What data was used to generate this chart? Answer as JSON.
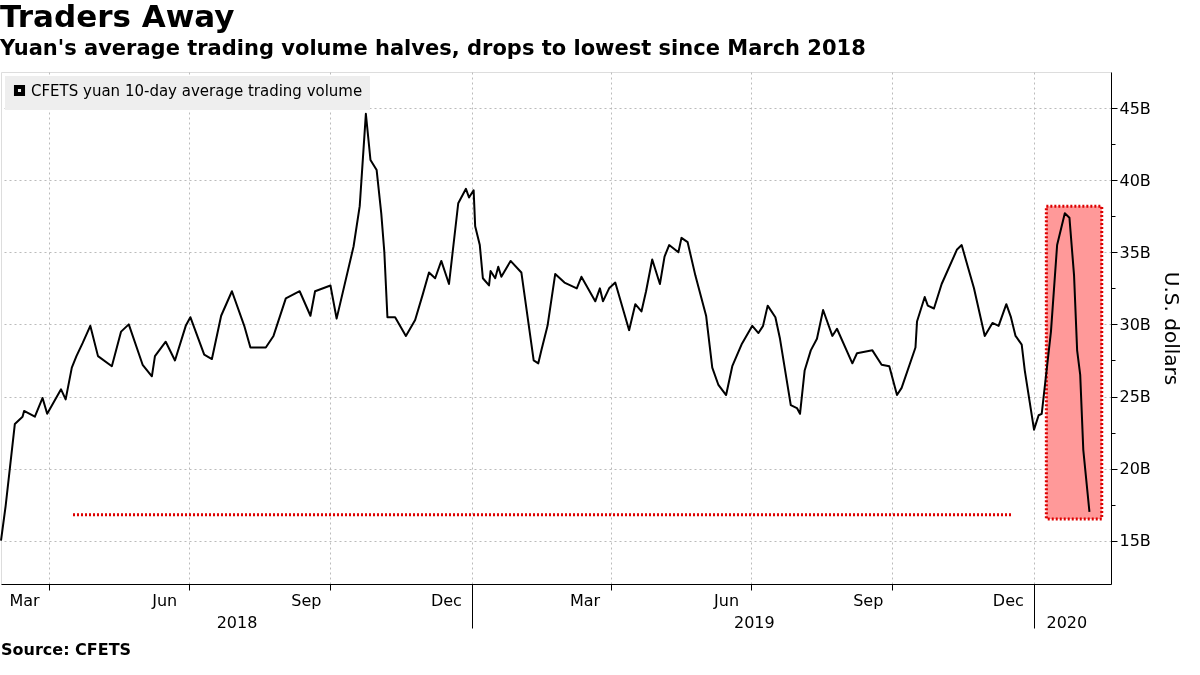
{
  "chart_data": {
    "type": "line",
    "title": "Traders Away",
    "subtitle": "Yuan's average trading volume halves, drops to lowest since March 2018",
    "ylabel": "U.S. dollars",
    "annotations": [
      "Source: CFETS"
    ],
    "series": [
      {
        "name": "CFETS yuan 10-day average trading volume",
        "color": "#000000",
        "x": [
          "2018-03-01",
          "2018-03-04",
          "2018-03-10",
          "2018-03-15",
          "2018-03-16",
          "2018-03-23",
          "2018-03-28",
          "2018-03-31",
          "2018-04-09",
          "2018-04-12",
          "2018-04-16",
          "2018-04-19",
          "2018-04-23",
          "2018-04-28",
          "2018-05-03",
          "2018-05-12",
          "2018-05-18",
          "2018-05-23",
          "2018-06-01",
          "2018-06-07",
          "2018-06-09",
          "2018-06-16",
          "2018-06-22",
          "2018-06-29",
          "2018-07-02",
          "2018-07-11",
          "2018-07-16",
          "2018-07-22",
          "2018-07-29",
          "2018-08-06",
          "2018-08-10",
          "2018-08-20",
          "2018-08-25",
          "2018-09-02",
          "2018-09-11",
          "2018-09-18",
          "2018-09-21",
          "2018-10-01",
          "2018-10-05",
          "2018-10-16",
          "2018-10-20",
          "2018-10-24",
          "2018-10-27",
          "2018-10-31",
          "2018-11-03",
          "2018-11-05",
          "2018-11-07",
          "2018-11-12",
          "2018-11-19",
          "2018-11-25",
          "2018-11-30",
          "2018-12-04",
          "2018-12-08",
          "2018-12-12",
          "2018-12-17",
          "2018-12-23",
          "2018-12-28",
          "2018-12-30",
          "2019-01-02",
          "2019-01-03",
          "2019-01-06",
          "2019-01-08",
          "2019-01-12",
          "2019-01-13",
          "2019-01-16",
          "2019-01-18",
          "2019-01-20",
          "2019-01-26",
          "2019-02-02",
          "2019-02-10",
          "2019-02-13",
          "2019-02-15",
          "2019-02-19",
          "2019-02-24",
          "2019-03-02",
          "2019-03-10",
          "2019-03-13",
          "2019-03-22",
          "2019-03-25",
          "2019-03-27",
          "2019-03-31",
          "2019-04-04",
          "2019-04-13",
          "2019-04-17",
          "2019-04-21",
          "2019-04-24",
          "2019-04-28",
          "2019-05-03",
          "2019-05-06",
          "2019-05-09",
          "2019-05-15",
          "2019-05-17",
          "2019-05-21",
          "2019-05-26",
          "2019-06-02",
          "2019-06-06",
          "2019-06-10",
          "2019-06-15",
          "2019-06-19",
          "2019-06-25",
          "2019-07-02",
          "2019-07-06",
          "2019-07-09",
          "2019-07-12",
          "2019-07-17",
          "2019-07-20",
          "2019-07-27",
          "2019-07-31",
          "2019-08-02",
          "2019-08-05",
          "2019-08-09",
          "2019-08-13",
          "2019-08-17",
          "2019-08-23",
          "2019-08-26",
          "2019-09-05",
          "2019-09-08",
          "2019-09-18",
          "2019-09-24",
          "2019-09-29",
          "2019-10-04",
          "2019-10-07",
          "2019-10-16",
          "2019-10-17",
          "2019-10-22",
          "2019-10-24",
          "2019-10-28",
          "2019-11-02",
          "2019-11-12",
          "2019-11-15",
          "2019-11-19",
          "2019-11-23",
          "2019-11-30",
          "2019-12-05",
          "2019-12-09",
          "2019-12-14",
          "2019-12-17",
          "2019-12-20",
          "2019-12-24",
          "2019-12-26",
          "2020-01-01",
          "2020-01-04",
          "2020-01-06",
          "2020-01-12",
          "2020-01-16",
          "2020-01-21",
          "2020-01-24",
          "2020-01-27",
          "2020-01-29",
          "2020-01-31",
          "2020-02-02",
          "2020-02-06"
        ],
        "values": [
          15.0,
          17.4,
          23.1,
          23.6,
          24.0,
          23.6,
          24.9,
          23.8,
          25.5,
          24.8,
          27.0,
          27.8,
          28.7,
          29.9,
          27.8,
          27.1,
          29.5,
          30.0,
          27.2,
          26.4,
          27.8,
          28.8,
          27.5,
          29.9,
          30.5,
          27.9,
          27.6,
          30.6,
          32.3,
          29.9,
          28.4,
          28.4,
          29.2,
          31.8,
          32.3,
          30.6,
          32.3,
          32.7,
          30.4,
          35.4,
          38.2,
          44.6,
          41.4,
          40.7,
          37.7,
          35.0,
          30.5,
          30.5,
          29.2,
          30.3,
          32.1,
          33.6,
          33.2,
          34.4,
          32.8,
          38.4,
          39.4,
          38.8,
          39.3,
          36.8,
          35.5,
          33.2,
          32.7,
          33.7,
          33.2,
          34.0,
          33.3,
          34.4,
          33.6,
          27.5,
          27.3,
          28.2,
          29.9,
          33.5,
          32.9,
          32.5,
          33.3,
          31.6,
          32.5,
          31.6,
          32.5,
          32.9,
          29.6,
          31.4,
          30.9,
          32.3,
          34.5,
          32.8,
          34.7,
          35.5,
          35.0,
          36.0,
          35.7,
          33.4,
          30.6,
          27.0,
          25.8,
          25.1,
          27.1,
          28.6,
          29.9,
          29.4,
          29.9,
          31.3,
          30.5,
          29.0,
          24.4,
          24.2,
          23.8,
          26.8,
          28.2,
          29.0,
          31.0,
          29.2,
          29.7,
          27.3,
          28.0,
          28.2,
          27.2,
          27.1,
          25.1,
          25.6,
          28.4,
          30.2,
          31.9,
          31.3,
          31.1,
          32.8,
          35.2,
          35.5,
          34.0,
          32.5,
          29.2,
          30.1,
          29.9,
          31.4,
          30.5,
          29.2,
          28.6,
          26.8,
          22.7,
          23.7,
          23.8,
          29.5,
          35.5,
          37.7,
          37.4,
          33.4,
          28.2,
          26.5,
          21.3,
          17.0
        ]
      }
    ],
    "xlim": [
      "2018-03-01",
      "2020-02-20"
    ],
    "xticks": [
      {
        "value": "2018-03-16",
        "label": "Mar"
      },
      {
        "value": "2018-04-01",
        "label": null
      },
      {
        "value": "2018-06-15",
        "label": "Jun"
      },
      {
        "value": "2018-07-01",
        "label": null
      },
      {
        "value": "2018-09-15",
        "label": "Sep"
      },
      {
        "value": "2018-10-01",
        "label": null
      },
      {
        "value": "2018-12-15",
        "label": "Dec"
      },
      {
        "value": "2019-01-01",
        "label": null
      },
      {
        "value": "2019-03-15",
        "label": "Mar"
      },
      {
        "value": "2019-04-01",
        "label": null
      },
      {
        "value": "2019-06-15",
        "label": "Jun"
      },
      {
        "value": "2019-07-01",
        "label": null
      },
      {
        "value": "2019-09-15",
        "label": "Sep"
      },
      {
        "value": "2019-10-01",
        "label": null
      },
      {
        "value": "2019-12-15",
        "label": "Dec"
      },
      {
        "value": "2020-01-01",
        "label": null
      }
    ],
    "x2lim": [
      "2018-03-01",
      "2020-02-20"
    ],
    "x2ticks": [
      {
        "value": "2018-08-01",
        "label": "2018"
      },
      {
        "value": "2019-01-01",
        "label": null
      },
      {
        "value": "2019-07-03",
        "label": "2019"
      },
      {
        "value": "2020-01-01",
        "label": null
      },
      {
        "value": "2020-01-22",
        "label": "2020"
      }
    ],
    "ylim": [
      12,
      47.5
    ],
    "yticks": [
      {
        "value": 15,
        "label": "15B"
      },
      {
        "value": 17.5,
        "label": null
      },
      {
        "value": 20,
        "label": "20B"
      },
      {
        "value": 22.5,
        "label": null
      },
      {
        "value": 25,
        "label": "25B"
      },
      {
        "value": 27.5,
        "label": null
      },
      {
        "value": 30,
        "label": "30B"
      },
      {
        "value": 32.5,
        "label": null
      },
      {
        "value": 35,
        "label": "35B"
      },
      {
        "value": 37.5,
        "label": null
      },
      {
        "value": 40,
        "label": "40B"
      },
      {
        "value": 42.5,
        "label": null
      },
      {
        "value": 45,
        "label": "45B"
      }
    ],
    "bands": [
      {
        "axis": "x",
        "from": "2020-01-09",
        "to": "2020-02-14",
        "color": "#ff9999"
      }
    ],
    "ref_lines": [
      {
        "axis": "y",
        "value": 16.8,
        "color": "#dd0000",
        "line_style": "dotted"
      }
    ],
    "grid": true,
    "legend": "top left",
    "marker": "none",
    "line_style": "solid"
  }
}
